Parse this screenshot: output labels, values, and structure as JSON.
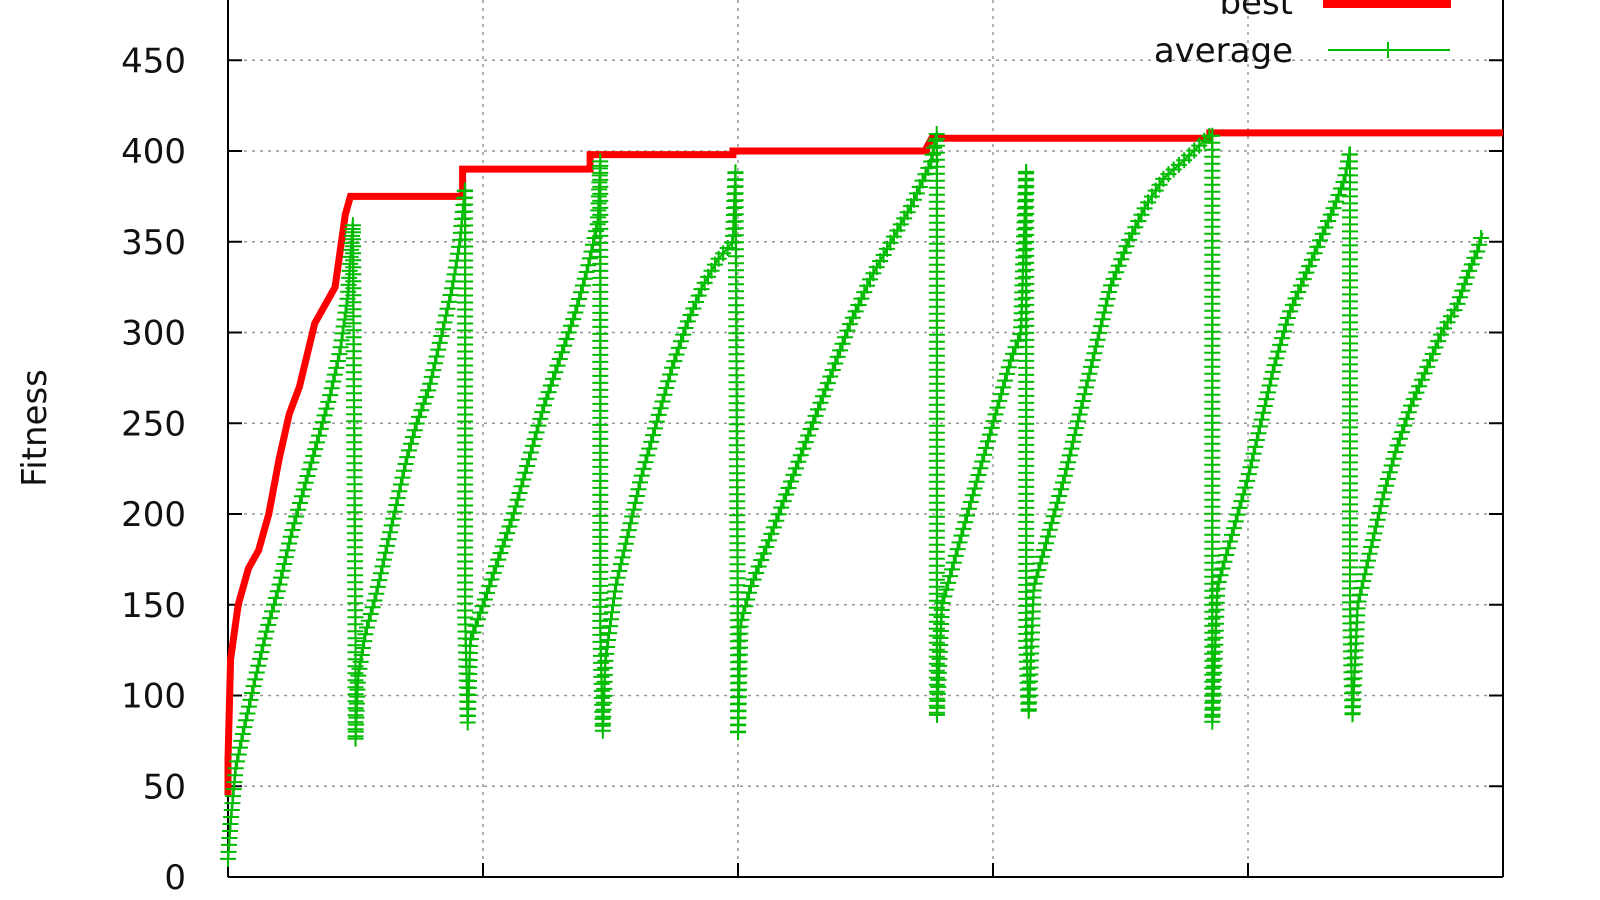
{
  "chart_data": {
    "type": "line",
    "title": "",
    "xlabel": "",
    "ylabel": "Fitness",
    "ylim": [
      0,
      480
    ],
    "yticks": [
      0,
      50,
      100,
      150,
      200,
      250,
      300,
      350,
      400,
      450
    ],
    "ytick_labels": [
      "0",
      "50",
      "100",
      "150",
      "200",
      "250",
      "300",
      "350",
      "400",
      "450"
    ],
    "xlim": [
      0,
      500
    ],
    "xgrid": [
      100,
      200,
      300,
      400
    ],
    "grid": true,
    "legend_position": "top-right",
    "series": [
      {
        "name": "best",
        "color": "#ff0000",
        "style": "step",
        "points": [
          [
            0,
            45
          ],
          [
            0,
            65
          ],
          [
            1,
            120
          ],
          [
            4,
            150
          ],
          [
            8,
            170
          ],
          [
            12,
            180
          ],
          [
            16,
            200
          ],
          [
            20,
            230
          ],
          [
            24,
            255
          ],
          [
            28,
            270
          ],
          [
            34,
            305
          ],
          [
            42,
            325
          ],
          [
            46,
            365
          ],
          [
            48,
            375
          ],
          [
            92,
            375
          ],
          [
            92,
            390
          ],
          [
            142,
            390
          ],
          [
            142,
            398
          ],
          [
            198,
            398
          ],
          [
            198,
            400
          ],
          [
            274,
            400
          ],
          [
            274,
            402
          ],
          [
            276,
            407
          ],
          [
            385,
            407
          ],
          [
            385,
            410
          ],
          [
            500,
            410
          ]
        ]
      },
      {
        "name": "average",
        "color": "#00bb00",
        "marker": "plus",
        "points": [
          [
            0,
            10
          ],
          [
            1,
            30
          ],
          [
            3,
            60
          ],
          [
            6,
            80
          ],
          [
            10,
            105
          ],
          [
            15,
            135
          ],
          [
            20,
            160
          ],
          [
            25,
            190
          ],
          [
            30,
            215
          ],
          [
            35,
            240
          ],
          [
            40,
            265
          ],
          [
            44,
            290
          ],
          [
            47,
            320
          ],
          [
            49,
            360
          ],
          [
            50,
            130
          ],
          [
            50,
            75
          ],
          [
            51,
            110
          ],
          [
            54,
            135
          ],
          [
            58,
            155
          ],
          [
            62,
            180
          ],
          [
            66,
            205
          ],
          [
            70,
            230
          ],
          [
            74,
            250
          ],
          [
            79,
            270
          ],
          [
            84,
            300
          ],
          [
            88,
            325
          ],
          [
            91,
            350
          ],
          [
            93,
            380
          ],
          [
            93,
            145
          ],
          [
            94,
            85
          ],
          [
            95,
            130
          ],
          [
            100,
            150
          ],
          [
            106,
            175
          ],
          [
            112,
            200
          ],
          [
            118,
            230
          ],
          [
            124,
            260
          ],
          [
            130,
            285
          ],
          [
            136,
            310
          ],
          [
            141,
            335
          ],
          [
            145,
            360
          ],
          [
            146,
            395
          ],
          [
            146,
            135
          ],
          [
            147,
            80
          ],
          [
            148,
            120
          ],
          [
            152,
            160
          ],
          [
            157,
            190
          ],
          [
            162,
            220
          ],
          [
            168,
            250
          ],
          [
            174,
            280
          ],
          [
            180,
            305
          ],
          [
            186,
            325
          ],
          [
            192,
            340
          ],
          [
            198,
            350
          ],
          [
            199,
            390
          ],
          [
            200,
            120
          ],
          [
            200,
            78
          ],
          [
            201,
            140
          ],
          [
            205,
            160
          ],
          [
            212,
            185
          ],
          [
            220,
            215
          ],
          [
            228,
            245
          ],
          [
            236,
            275
          ],
          [
            244,
            305
          ],
          [
            252,
            330
          ],
          [
            260,
            350
          ],
          [
            268,
            370
          ],
          [
            276,
            395
          ],
          [
            278,
            410
          ],
          [
            278,
            140
          ],
          [
            278,
            88
          ],
          [
            280,
            150
          ],
          [
            284,
            170
          ],
          [
            290,
            200
          ],
          [
            296,
            230
          ],
          [
            302,
            260
          ],
          [
            307,
            285
          ],
          [
            311,
            300
          ],
          [
            313,
            390
          ],
          [
            313,
            130
          ],
          [
            314,
            90
          ],
          [
            316,
            160
          ],
          [
            322,
            190
          ],
          [
            328,
            220
          ],
          [
            334,
            255
          ],
          [
            340,
            290
          ],
          [
            346,
            325
          ],
          [
            353,
            350
          ],
          [
            360,
            370
          ],
          [
            367,
            385
          ],
          [
            375,
            395
          ],
          [
            386,
            410
          ],
          [
            386,
            130
          ],
          [
            386,
            85
          ],
          [
            388,
            160
          ],
          [
            394,
            190
          ],
          [
            400,
            220
          ],
          [
            405,
            250
          ],
          [
            410,
            280
          ],
          [
            416,
            310
          ],
          [
            422,
            330
          ],
          [
            428,
            350
          ],
          [
            434,
            370
          ],
          [
            438,
            385
          ],
          [
            440,
            400
          ],
          [
            440,
            150
          ],
          [
            441,
            88
          ],
          [
            443,
            150
          ],
          [
            448,
            180
          ],
          [
            453,
            210
          ],
          [
            458,
            235
          ],
          [
            464,
            260
          ],
          [
            470,
            280
          ],
          [
            476,
            300
          ],
          [
            482,
            315
          ],
          [
            487,
            335
          ],
          [
            490,
            345
          ],
          [
            492,
            355
          ]
        ]
      }
    ]
  }
}
